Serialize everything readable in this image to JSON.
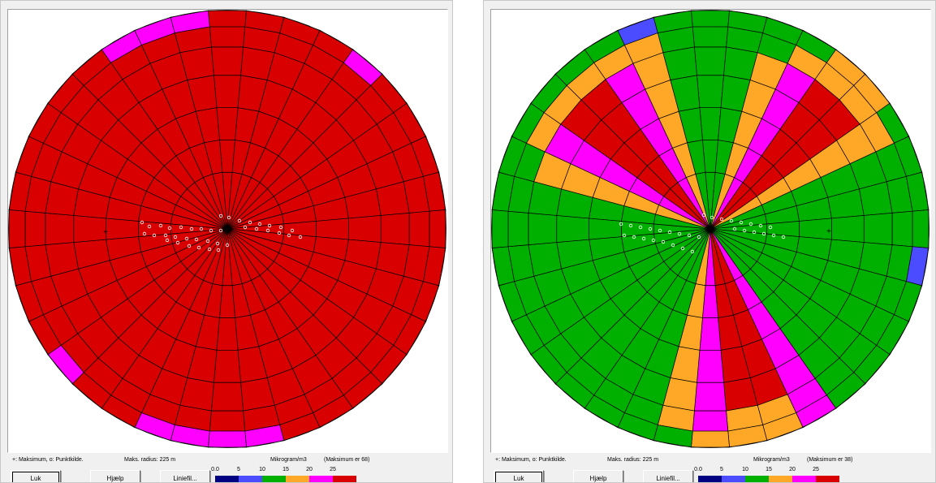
{
  "palette": {
    "c0": "#000080",
    "c1": "#4b4bff",
    "c2": "#00b000",
    "c3": "#ffa828",
    "c4": "#ff00ff",
    "c5": "#d80000"
  },
  "legend": {
    "ticks": [
      "0.0",
      "5",
      "10",
      "15",
      "20",
      "25"
    ],
    "colors": [
      "#000080",
      "#4b4bff",
      "#00b000",
      "#ffa828",
      "#ff00ff",
      "#d80000"
    ]
  },
  "panels": [
    {
      "legend_text": "+: Maksimum,  o:  Punktkilde.",
      "radius_text": "Maks. radius:  225 m",
      "unit_text": "Mikrogram/m3",
      "max_text": "(Maksimum er  68)",
      "buttons": {
        "close": "Luk",
        "help": "Hjælp",
        "linefile": "Liniefil..."
      },
      "rings": [
        "ppppppppppppppppppppppppppppppppppppp",
        "ppppppppppppppppppppppppppppppppppppp"
      ]
    },
    {
      "legend_text": "+: Maksimum,  o:  Punktkilde.",
      "radius_text": "Maks. radius:  225 m",
      "unit_text": "Mikrogram/m3",
      "max_text": "(Maksimum er  38)",
      "buttons": {
        "close": "Luk",
        "help": "Hjælp",
        "linefile": "Liniefil..."
      }
    }
  ],
  "map_left": {
    "sectors": 36,
    "rings": [
      "555555555555555555555555555555555555",
      "555555555555555555555555555555555555",
      "555555555555555555555555555555555555",
      "555555555555555555555555555555555555",
      "555555555555555555555555555555555555",
      "555555555555555555555555555555555555",
      "555545555555555554444554555555555444"
    ]
  },
  "map_right": {
    "sectors": 36,
    "rings": [
      "223455322222222455432222222223455432",
      "223455322222222455432222222223455432",
      "223455322222222455432222222223455432",
      "223455322222222455432222222223455432",
      "223455322222222455432222222223455432",
      "222333322222222433432222222222333332",
      "222233222212222433322222222222222212"
    ]
  }
}
